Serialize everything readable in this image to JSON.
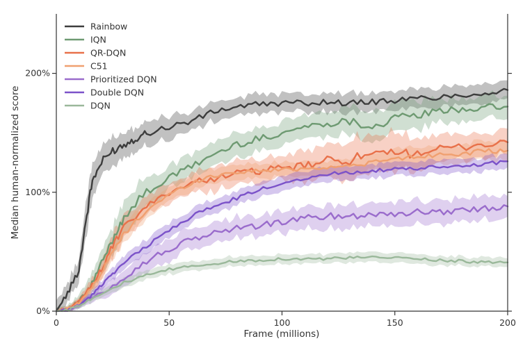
{
  "chart_data": {
    "type": "line",
    "title": "",
    "xlabel": "Frame (millions)",
    "ylabel": "Median human-normalized score",
    "xlim": [
      0,
      200
    ],
    "ylim": [
      0,
      250
    ],
    "x_ticks": [
      0,
      50,
      100,
      150,
      200
    ],
    "x_tick_labels": [
      "0",
      "50",
      "100",
      "150",
      "200"
    ],
    "y_ticks": [
      0,
      100,
      200
    ],
    "y_tick_labels": [
      "0%",
      "100%",
      "200%"
    ],
    "grid": false,
    "legend_position": "top-left",
    "series": [
      {
        "name": "Rainbow",
        "color": "#3d3d3d",
        "x": [
          0,
          5,
          10,
          13,
          16,
          20,
          25,
          30,
          35,
          40,
          50,
          60,
          70,
          80,
          90,
          100,
          110,
          120,
          130,
          140,
          150,
          160,
          170,
          180,
          190,
          200
        ],
        "y": [
          0,
          15,
          35,
          75,
          110,
          125,
          135,
          140,
          145,
          150,
          155,
          160,
          168,
          172,
          174,
          175,
          175,
          176,
          175,
          176,
          177,
          179,
          180,
          182,
          183,
          186
        ],
        "band": [
          8,
          8,
          10,
          15,
          15,
          12,
          12,
          10,
          10,
          10,
          10,
          8,
          8,
          8,
          8,
          8,
          8,
          8,
          8,
          8,
          8,
          8,
          8,
          8,
          8,
          8
        ]
      },
      {
        "name": "IQN",
        "color": "#6e9a72",
        "x": [
          0,
          5,
          10,
          15,
          20,
          25,
          30,
          40,
          50,
          60,
          70,
          80,
          90,
          100,
          110,
          120,
          130,
          140,
          150,
          160,
          170,
          180,
          190,
          200
        ],
        "y": [
          0,
          2,
          8,
          20,
          40,
          60,
          80,
          100,
          112,
          122,
          132,
          140,
          145,
          150,
          155,
          158,
          160,
          155,
          162,
          165,
          168,
          170,
          171,
          172
        ],
        "band": [
          3,
          3,
          5,
          8,
          10,
          12,
          14,
          12,
          10,
          10,
          10,
          10,
          10,
          10,
          10,
          10,
          12,
          12,
          12,
          12,
          10,
          10,
          10,
          10
        ]
      },
      {
        "name": "QR-DQN",
        "color": "#e8714a",
        "x": [
          0,
          5,
          10,
          15,
          20,
          25,
          30,
          40,
          50,
          60,
          70,
          80,
          90,
          100,
          110,
          120,
          130,
          140,
          150,
          160,
          170,
          180,
          190,
          200
        ],
        "y": [
          0,
          2,
          8,
          20,
          35,
          55,
          70,
          88,
          100,
          108,
          112,
          116,
          118,
          120,
          122,
          126,
          128,
          130,
          132,
          134,
          136,
          138,
          140,
          142
        ],
        "band": [
          2,
          2,
          3,
          5,
          8,
          10,
          10,
          8,
          8,
          8,
          10,
          10,
          10,
          10,
          12,
          14,
          16,
          16,
          16,
          14,
          12,
          10,
          10,
          10
        ]
      },
      {
        "name": "C51",
        "color": "#f0a070",
        "x": [
          0,
          5,
          10,
          15,
          20,
          25,
          30,
          40,
          50,
          60,
          70,
          80,
          90,
          100,
          110,
          120,
          130,
          140,
          150,
          160,
          170,
          180,
          190,
          200
        ],
        "y": [
          0,
          2,
          7,
          18,
          32,
          50,
          65,
          85,
          98,
          108,
          114,
          117,
          118,
          119,
          120,
          121,
          122,
          125,
          128,
          130,
          132,
          133,
          134,
          135
        ],
        "band": [
          2,
          2,
          3,
          4,
          6,
          8,
          8,
          7,
          6,
          6,
          6,
          6,
          6,
          6,
          6,
          6,
          6,
          6,
          8,
          8,
          8,
          8,
          8,
          8
        ]
      },
      {
        "name": "Prioritized DQN",
        "color": "#9a6ccc",
        "x": [
          0,
          5,
          10,
          20,
          30,
          40,
          50,
          60,
          70,
          80,
          90,
          100,
          110,
          120,
          130,
          140,
          150,
          160,
          170,
          180,
          190,
          200
        ],
        "y": [
          0,
          1,
          5,
          15,
          28,
          42,
          52,
          60,
          66,
          70,
          72,
          75,
          78,
          80,
          80,
          82,
          82,
          83,
          84,
          85,
          86,
          88
        ],
        "band": [
          1,
          1,
          3,
          5,
          7,
          8,
          9,
          9,
          9,
          9,
          9,
          9,
          9,
          10,
          10,
          10,
          10,
          10,
          10,
          10,
          10,
          10
        ]
      },
      {
        "name": "Double DQN",
        "color": "#7b52c9",
        "x": [
          0,
          5,
          10,
          15,
          20,
          25,
          30,
          40,
          50,
          60,
          70,
          80,
          90,
          100,
          110,
          120,
          130,
          140,
          150,
          160,
          170,
          180,
          190,
          200
        ],
        "y": [
          0,
          1,
          5,
          12,
          22,
          32,
          40,
          55,
          68,
          80,
          88,
          95,
          102,
          108,
          112,
          115,
          117,
          118,
          119,
          120,
          121,
          122,
          124,
          126
        ],
        "band": [
          1,
          1,
          2,
          3,
          4,
          5,
          6,
          6,
          6,
          6,
          6,
          6,
          6,
          6,
          6,
          6,
          6,
          6,
          6,
          6,
          6,
          6,
          6,
          6
        ]
      },
      {
        "name": "DQN",
        "color": "#9ab89a",
        "x": [
          0,
          5,
          10,
          15,
          20,
          30,
          40,
          50,
          60,
          70,
          80,
          90,
          100,
          110,
          120,
          130,
          140,
          150,
          160,
          170,
          180,
          190,
          200
        ],
        "y": [
          0,
          1,
          5,
          10,
          15,
          24,
          30,
          35,
          38,
          40,
          42,
          43,
          44,
          44,
          44,
          45,
          45,
          45,
          44,
          43,
          42,
          41,
          41
        ],
        "band": [
          1,
          1,
          2,
          3,
          3,
          4,
          4,
          4,
          4,
          4,
          4,
          4,
          4,
          4,
          4,
          4,
          4,
          4,
          4,
          4,
          4,
          4,
          4
        ]
      }
    ]
  }
}
